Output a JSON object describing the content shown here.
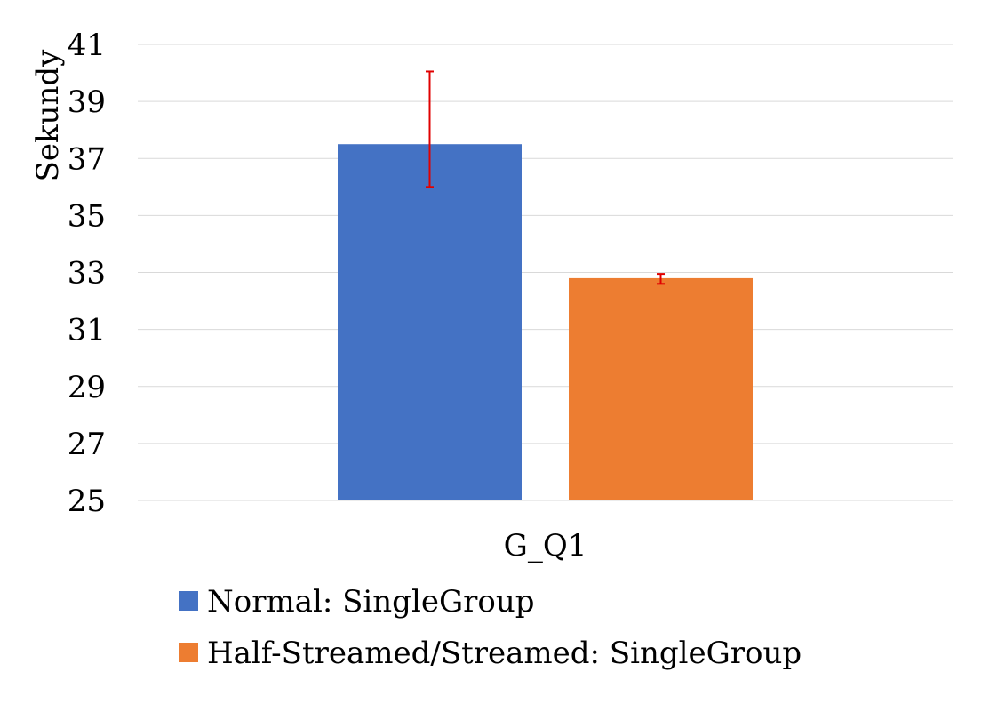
{
  "chart_data": {
    "type": "bar",
    "title": "",
    "xlabel": "",
    "ylabel": "Sekundy",
    "ylim": [
      25,
      41
    ],
    "yticks": [
      25,
      27,
      29,
      31,
      33,
      35,
      37,
      39,
      41
    ],
    "grid": true,
    "legend_position": "bottom",
    "categories": [
      "G_Q1"
    ],
    "error_bar_color": "#e00000",
    "series": [
      {
        "name": "Normal: SingleGroup",
        "color": "#4472c4",
        "values": [
          37.5
        ],
        "error_low": [
          36.0
        ],
        "error_high": [
          40.05
        ]
      },
      {
        "name": "Half-Streamed/Streamed: SingleGroup",
        "color": "#ed7d31",
        "values": [
          32.8
        ],
        "error_low": [
          32.6
        ],
        "error_high": [
          32.95
        ]
      }
    ]
  }
}
